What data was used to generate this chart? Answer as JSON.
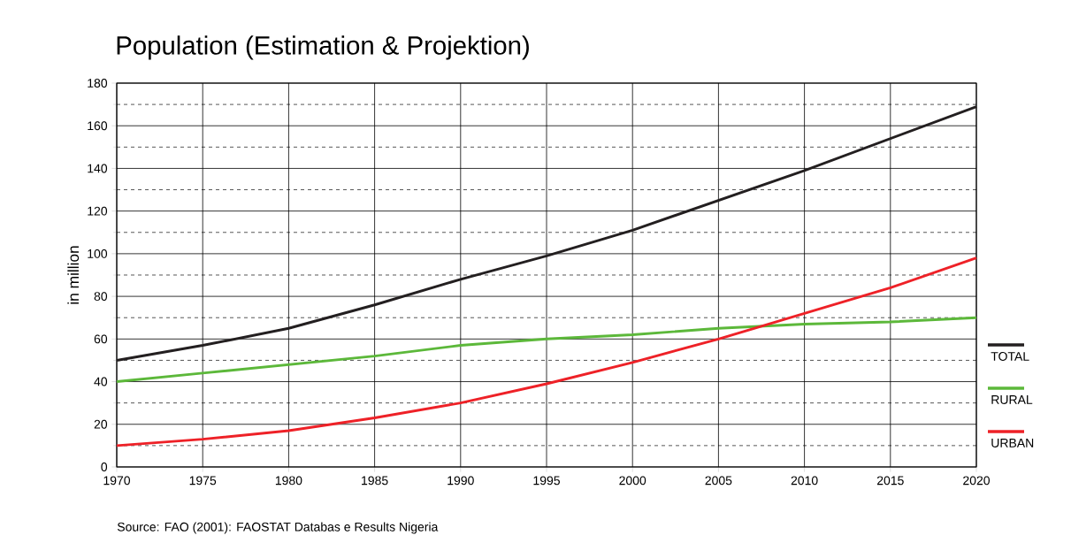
{
  "chart_data": {
    "type": "line",
    "title": "Population (Estimation & Projektion)",
    "ylabel": "in million",
    "x": [
      1970,
      1975,
      1980,
      1985,
      1990,
      1995,
      2000,
      2005,
      2010,
      2015,
      2020
    ],
    "series": [
      {
        "name": "TOTAL",
        "color": "#231f20",
        "values": [
          50,
          57,
          65,
          76,
          88,
          99,
          111,
          125,
          139,
          154,
          169
        ]
      },
      {
        "name": "RURAL",
        "color": "#5cb83a",
        "values": [
          40,
          44,
          48,
          52,
          57,
          60,
          62,
          65,
          67,
          68,
          70
        ]
      },
      {
        "name": "URBAN",
        "color": "#ee2127",
        "values": [
          10,
          13,
          17,
          23,
          30,
          39,
          49,
          60,
          72,
          84,
          98
        ]
      }
    ],
    "xlim": [
      1970,
      2020
    ],
    "xticks": [
      1970,
      1975,
      1980,
      1985,
      1990,
      1995,
      2000,
      2005,
      2010,
      2015,
      2020
    ],
    "ylim": [
      0,
      180
    ],
    "yticks": [
      0,
      20,
      40,
      60,
      80,
      100,
      120,
      140,
      160,
      180
    ],
    "grid": true,
    "legend": "right",
    "marker": "none",
    "line_style": "solid",
    "annotations": [
      "Source: FAO (2001): FAOSTAT Databas e Results Nigeria"
    ]
  }
}
